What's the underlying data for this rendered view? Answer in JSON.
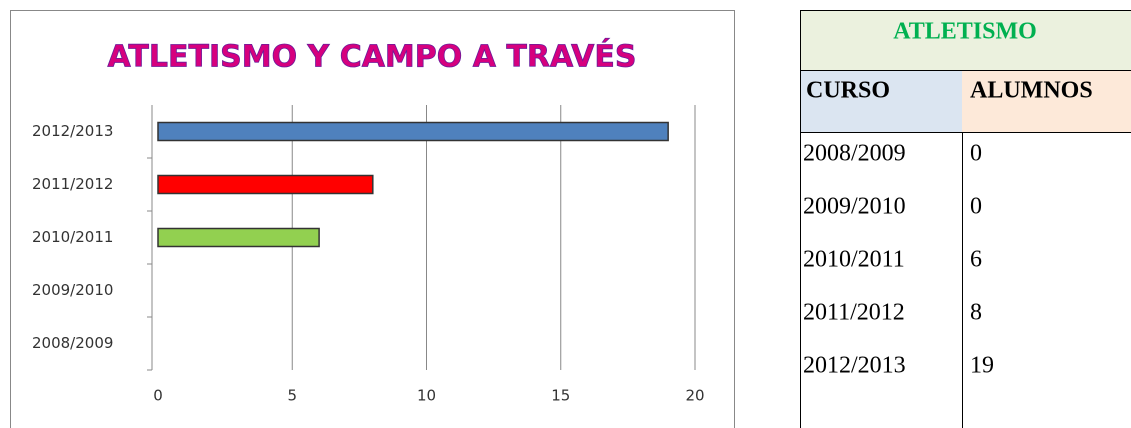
{
  "chart_data": {
    "type": "barh",
    "title": "ATLETISMO Y CAMPO A TRAVÉS",
    "categories": [
      "2008/2009",
      "2009/2010",
      "2010/2011",
      "2011/2012",
      "2012/2013"
    ],
    "values": [
      0,
      0,
      6,
      8,
      19
    ],
    "colors": [
      "#4f81bd",
      "#4f81bd",
      "#92d050",
      "#ff0000",
      "#4f81bd"
    ],
    "xlim": [
      0,
      20
    ],
    "xticks": [
      0,
      5,
      10,
      15,
      20
    ],
    "grid": true
  },
  "table": {
    "title": "ATLETISMO",
    "header": [
      "CURSO",
      "ALUMNOS"
    ],
    "rows": [
      [
        "2008/2009",
        0
      ],
      [
        "2009/2010",
        0
      ],
      [
        "2010/2011",
        6
      ],
      [
        "2011/2012",
        8
      ],
      [
        "2012/2013",
        19
      ]
    ]
  }
}
